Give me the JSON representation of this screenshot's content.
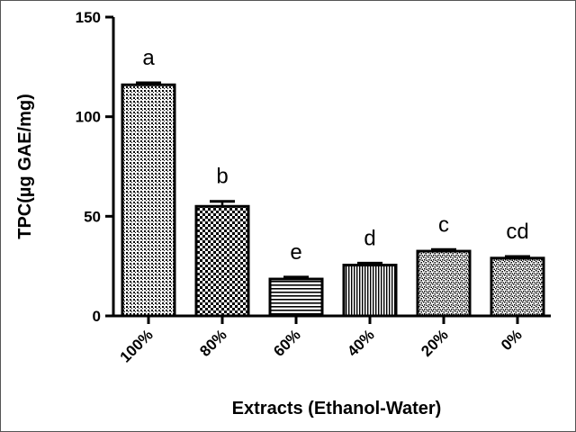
{
  "chart_data": {
    "type": "bar",
    "categories": [
      "100%",
      "80%",
      "60%",
      "40%",
      "20%",
      "0%"
    ],
    "values": [
      116,
      55,
      18.5,
      25.5,
      32.5,
      29
    ],
    "errors": [
      1.0,
      2.5,
      1.0,
      1.0,
      0.8,
      0.8
    ],
    "significance_letters": [
      "a",
      "b",
      "e",
      "d",
      "c",
      "cd"
    ],
    "patterns": [
      "crosshatch-fine",
      "checker",
      "horizontal-lines",
      "vertical-lines",
      "speckle",
      "speckle"
    ],
    "xlabel": "Extracts (Ethanol-Water)",
    "ylabel": "TPC(µg GAE/mg)",
    "ylim": [
      0,
      150
    ],
    "yticks": [
      0,
      50,
      100,
      150
    ],
    "grid": false,
    "bar_color": "#000000"
  }
}
